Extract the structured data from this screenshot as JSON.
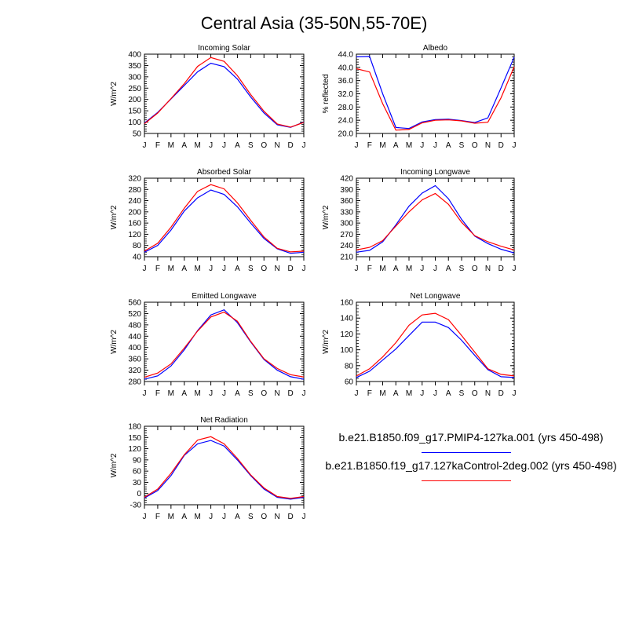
{
  "figure_title": "Central Asia (35-50N,55-70E)",
  "colors": {
    "series_1": "#0000ff",
    "series_2": "#ff0000"
  },
  "legend": [
    {
      "label": "b.e21.B1850.f09_g17.PMIP4-127ka.001 (yrs 450-498)",
      "color": "#0000ff"
    },
    {
      "label": "b.e21.B1850.f19_g17.127kaControl-2deg.002 (yrs 450-498)",
      "color": "#ff0000"
    }
  ],
  "chart_data": [
    {
      "type": "line",
      "title": "Incoming Solar",
      "ylabel": "W/m^2",
      "x": [
        "J",
        "F",
        "M",
        "A",
        "M",
        "J",
        "J",
        "A",
        "S",
        "O",
        "N",
        "D",
        "J"
      ],
      "ylim": [
        50,
        400
      ],
      "yticks": [
        "50",
        "100",
        "150",
        "200",
        "250",
        "300",
        "350",
        "400"
      ],
      "series": [
        {
          "color": "#0000ff",
          "values": [
            96,
            143,
            202,
            262,
            322,
            360,
            345,
            290,
            211,
            140,
            88,
            77,
            100
          ]
        },
        {
          "color": "#ff0000",
          "values": [
            93,
            140,
            204,
            270,
            346,
            385,
            368,
            305,
            222,
            148,
            92,
            78,
            98
          ]
        }
      ]
    },
    {
      "type": "line",
      "title": "Albedo",
      "ylabel": "% reflected",
      "x": [
        "J",
        "F",
        "M",
        "A",
        "M",
        "J",
        "J",
        "A",
        "S",
        "O",
        "N",
        "D",
        "J"
      ],
      "ylim": [
        20,
        44
      ],
      "yticks": [
        "20.0",
        "24.0",
        "28.0",
        "32.0",
        "36.0",
        "40.0",
        "44.0"
      ],
      "series": [
        {
          "color": "#0000ff",
          "values": [
            43.2,
            43.3,
            32.0,
            21.8,
            21.5,
            23.5,
            24.2,
            24.3,
            23.9,
            23.3,
            24.7,
            33.8,
            43.1
          ]
        },
        {
          "color": "#ff0000",
          "values": [
            39.6,
            38.6,
            29.0,
            21.0,
            21.2,
            23.2,
            24.0,
            24.1,
            23.8,
            23.1,
            23.4,
            30.8,
            40.2
          ]
        }
      ]
    },
    {
      "type": "line",
      "title": "Absorbed Solar",
      "ylabel": "W/m^2",
      "x": [
        "J",
        "F",
        "M",
        "A",
        "M",
        "J",
        "J",
        "A",
        "S",
        "O",
        "N",
        "D",
        "J"
      ],
      "ylim": [
        40,
        320
      ],
      "yticks": [
        "40",
        "80",
        "120",
        "160",
        "200",
        "240",
        "280",
        "320"
      ],
      "series": [
        {
          "color": "#0000ff",
          "values": [
            56,
            80,
            135,
            203,
            250,
            278,
            262,
            218,
            160,
            105,
            68,
            52,
            56
          ]
        },
        {
          "color": "#ff0000",
          "values": [
            60,
            88,
            145,
            213,
            273,
            297,
            282,
            232,
            170,
            110,
            70,
            57,
            60
          ]
        }
      ]
    },
    {
      "type": "line",
      "title": "Incoming Longwave",
      "ylabel": "W/m^2",
      "x": [
        "J",
        "F",
        "M",
        "A",
        "M",
        "J",
        "J",
        "A",
        "S",
        "O",
        "N",
        "D",
        "J"
      ],
      "ylim": [
        210,
        420
      ],
      "yticks": [
        "210",
        "240",
        "270",
        "300",
        "330",
        "360",
        "390",
        "420"
      ],
      "series": [
        {
          "color": "#0000ff",
          "values": [
            222,
            227,
            250,
            295,
            345,
            380,
            400,
            365,
            310,
            265,
            245,
            230,
            220
          ]
        },
        {
          "color": "#ff0000",
          "values": [
            228,
            235,
            253,
            292,
            330,
            362,
            379,
            350,
            302,
            266,
            250,
            238,
            228
          ]
        }
      ]
    },
    {
      "type": "line",
      "title": "Emitted Longwave",
      "ylabel": "W/m^2",
      "x": [
        "J",
        "F",
        "M",
        "A",
        "M",
        "J",
        "J",
        "A",
        "S",
        "O",
        "N",
        "D",
        "J"
      ],
      "ylim": [
        280,
        560
      ],
      "yticks": [
        "280",
        "320",
        "360",
        "400",
        "440",
        "480",
        "520",
        "560"
      ],
      "series": [
        {
          "color": "#0000ff",
          "values": [
            288,
            300,
            335,
            392,
            460,
            515,
            533,
            488,
            420,
            358,
            320,
            297,
            288
          ]
        },
        {
          "color": "#ff0000",
          "values": [
            295,
            310,
            342,
            398,
            458,
            508,
            525,
            493,
            422,
            360,
            326,
            304,
            296
          ]
        }
      ]
    },
    {
      "type": "line",
      "title": "Net Longwave",
      "ylabel": "W/m^2",
      "x": [
        "J",
        "F",
        "M",
        "A",
        "M",
        "J",
        "J",
        "A",
        "S",
        "O",
        "N",
        "D",
        "J"
      ],
      "ylim": [
        60,
        160
      ],
      "yticks": [
        "60",
        "80",
        "100",
        "120",
        "140",
        "160"
      ],
      "series": [
        {
          "color": "#0000ff",
          "values": [
            65,
            73,
            87,
            101,
            118,
            135,
            135,
            128,
            112,
            93,
            75,
            66,
            65
          ]
        },
        {
          "color": "#ff0000",
          "values": [
            67,
            76,
            91,
            109,
            131,
            144,
            146,
            138,
            118,
            97,
            76,
            69,
            67
          ]
        }
      ]
    },
    {
      "type": "line",
      "title": "Net Radiation",
      "ylabel": "W/m^2",
      "x": [
        "J",
        "F",
        "M",
        "A",
        "M",
        "J",
        "J",
        "A",
        "S",
        "O",
        "N",
        "D",
        "J"
      ],
      "ylim": [
        -30,
        180
      ],
      "yticks": [
        "-30",
        "0",
        "30",
        "60",
        "90",
        "120",
        "150",
        "180"
      ],
      "series": [
        {
          "color": "#0000ff",
          "values": [
            -12,
            8,
            48,
            102,
            133,
            142,
            127,
            90,
            48,
            12,
            -10,
            -15,
            -10
          ]
        },
        {
          "color": "#ff0000",
          "values": [
            -10,
            12,
            54,
            104,
            143,
            152,
            133,
            94,
            50,
            15,
            -8,
            -13,
            -8
          ]
        }
      ]
    }
  ]
}
